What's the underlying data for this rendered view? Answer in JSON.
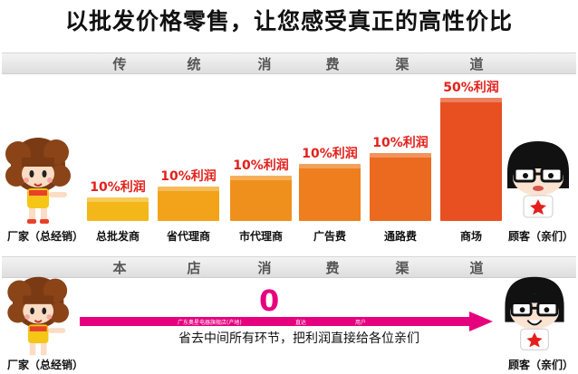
{
  "headline": "以批发价格零售，让您感受真正的高性价比",
  "traditional": {
    "band_chars": [
      "传",
      "统",
      "消",
      "费",
      "渠",
      "道"
    ],
    "manufacturer_label": "厂家（总经销）",
    "customer_label": "顾客（亲们）",
    "steps": [
      {
        "label": "总批发商",
        "pct": "10%利润",
        "level": 0.1,
        "color": "#f3b71a"
      },
      {
        "label": "省代理商",
        "pct": "10%利润",
        "level": 0.2,
        "color": "#f2a31a"
      },
      {
        "label": "市代理商",
        "pct": "10%利润",
        "level": 0.3,
        "color": "#f0901c"
      },
      {
        "label": "广告费",
        "pct": "10%利润",
        "level": 0.4,
        "color": "#ee7e1e"
      },
      {
        "label": "通路费",
        "pct": "10%利润",
        "level": 0.5,
        "color": "#ec6a20"
      },
      {
        "label": "商场",
        "pct": "50%利润",
        "level": 1.0,
        "color": "#e85022"
      }
    ]
  },
  "store": {
    "band_chars": [
      "本",
      "店",
      "消",
      "费",
      "渠",
      "道"
    ],
    "zero": "0",
    "arrow_texts": [
      "广东奥星电器旗舰店(产地)",
      "直达",
      "用户"
    ],
    "note": "省去中间所有环节，把利润直接给各位亲们",
    "manufacturer_label": "厂家（总经销）",
    "customer_label": "顾客（亲们）"
  },
  "colors": {
    "profit_text": "#e3201b",
    "arrow": "#e6007e"
  }
}
